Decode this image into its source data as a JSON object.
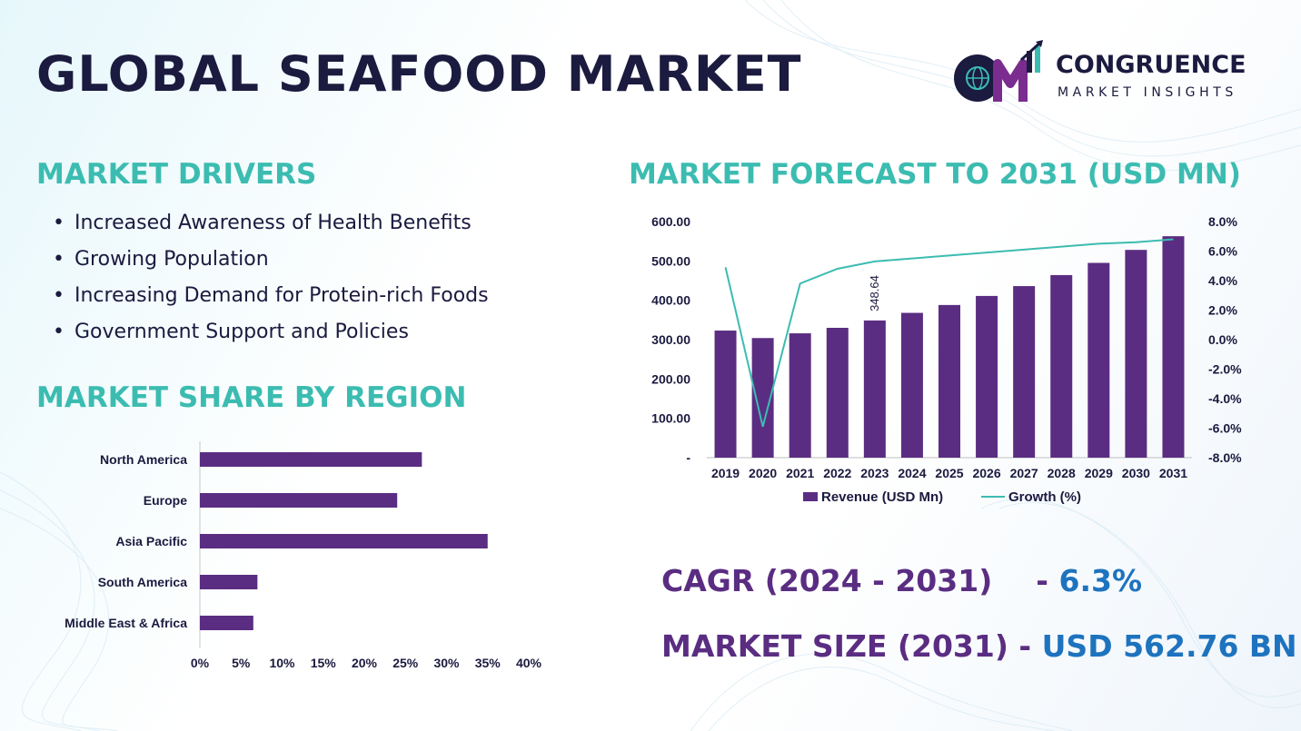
{
  "page": {
    "title": "GLOBAL SEAFOOD MARKET",
    "colors": {
      "primary": "#5a2d82",
      "accent_teal": "#3cbcb1",
      "accent_blue": "#1e73be",
      "text_dark": "#1b1a3f"
    }
  },
  "brand": {
    "name": "CONGRUENCE",
    "tagline": "MARKET INSIGHTS",
    "icon": "globe-chart-logo"
  },
  "drivers": {
    "title": "MARKET DRIVERS",
    "items": [
      "Increased Awareness of Health Benefits",
      "Growing Population",
      "Increasing Demand for Protein-rich Foods",
      "Government Support and Policies"
    ]
  },
  "region": {
    "title": "MARKET SHARE BY REGION"
  },
  "forecast": {
    "title": "MARKET FORECAST TO 2031 (USD MN)"
  },
  "stats": {
    "cagr_label": "CAGR (2024 - 2031)",
    "cagr_dash": "-",
    "cagr_value": "6.3%",
    "size_label": "MARKET SIZE (2031)",
    "size_dash": "-",
    "size_value": "USD 562.76 BN"
  },
  "chart_data": [
    {
      "type": "bar",
      "orientation": "horizontal",
      "categories": [
        "North America",
        "Europe",
        "Asia Pacific",
        "South America",
        "Middle East & Africa"
      ],
      "values": [
        27,
        24,
        35,
        7,
        6.5
      ],
      "unit": "%",
      "xlim": [
        0,
        40
      ],
      "xticks": [
        "0%",
        "5%",
        "10%",
        "15%",
        "20%",
        "25%",
        "30%",
        "35%",
        "40%"
      ],
      "bar_color": "#5a2d82",
      "grid": false
    },
    {
      "type": "bar",
      "categories": [
        "2019",
        "2020",
        "2021",
        "2022",
        "2023",
        "2024",
        "2025",
        "2026",
        "2027",
        "2028",
        "2029",
        "2030",
        "2031"
      ],
      "series": [
        {
          "name": "Revenue (USD Mn)",
          "type": "bar",
          "axis": "left",
          "color": "#5a2d82",
          "values": [
            323,
            304,
            316,
            330,
            348.64,
            368,
            388,
            411,
            436,
            464,
            495,
            528,
            562.76
          ]
        },
        {
          "name": "Growth (%)",
          "type": "line",
          "axis": "right",
          "color": "#3cbcb1",
          "values": [
            4.9,
            -5.9,
            3.8,
            4.8,
            5.3,
            5.5,
            5.7,
            5.9,
            6.1,
            6.3,
            6.5,
            6.6,
            6.8
          ]
        }
      ],
      "data_labels": [
        {
          "category": "2023",
          "text": "348.64"
        }
      ],
      "y_left": {
        "lim": [
          0,
          600
        ],
        "ticks": [
          "-",
          "100.00",
          "200.00",
          "300.00",
          "400.00",
          "500.00",
          "600.00"
        ]
      },
      "y_right": {
        "lim": [
          -8,
          8
        ],
        "ticks": [
          "-8.0%",
          "-6.0%",
          "-4.0%",
          "-2.0%",
          "0.0%",
          "2.0%",
          "4.0%",
          "6.0%",
          "8.0%"
        ]
      },
      "legend": "bottom",
      "grid": false
    }
  ]
}
